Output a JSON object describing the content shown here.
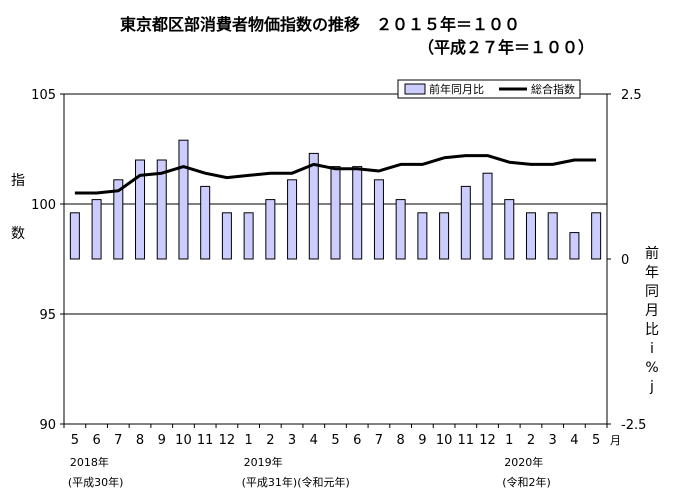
{
  "chart_data": {
    "type": "bar+line",
    "title": "東京都区部消費者物価指数の推移　２０１５年＝１００",
    "subtitle": "（平成２７年＝１００）",
    "categories": [
      "5",
      "6",
      "7",
      "8",
      "9",
      "10",
      "11",
      "12",
      "1",
      "2",
      "3",
      "4",
      "5",
      "6",
      "7",
      "8",
      "9",
      "10",
      "11",
      "12",
      "1",
      "2",
      "3",
      "4",
      "5"
    ],
    "month_unit": "月",
    "year_labels": [
      {
        "index": 0,
        "year": "2018年",
        "era": "(平成30年)"
      },
      {
        "index": 8,
        "year": "2019年",
        "era": "(平成31年)(令和元年)"
      },
      {
        "index": 20,
        "year": "2020年",
        "era": "(令和2年)"
      }
    ],
    "left_axis": {
      "label_chars": [
        "指",
        "数"
      ],
      "ylim": [
        90,
        105
      ],
      "ticks": [
        "90",
        "95",
        "100",
        "105"
      ]
    },
    "right_axis": {
      "label_chars": [
        "前",
        "年",
        "同",
        "月",
        "比",
        "i",
        "%",
        "j"
      ],
      "ylim": [
        -2.5,
        2.5
      ],
      "ticks": [
        "-2.5",
        "0",
        "2.5"
      ]
    },
    "legend": {
      "position": "top-right",
      "bar_label": "前年同月比",
      "line_label": "総合指数"
    },
    "series": [
      {
        "name": "前年同月比",
        "type": "bar",
        "axis": "right",
        "values": [
          0.7,
          0.9,
          1.2,
          1.5,
          1.5,
          1.8,
          1.1,
          0.7,
          0.7,
          0.9,
          1.2,
          1.6,
          1.4,
          1.4,
          1.2,
          0.9,
          0.7,
          0.7,
          1.1,
          1.3,
          0.9,
          0.7,
          0.7,
          0.4,
          0.7
        ]
      },
      {
        "name": "総合指数",
        "type": "line",
        "axis": "left",
        "values": [
          100.5,
          100.5,
          100.6,
          101.3,
          101.4,
          101.7,
          101.4,
          101.2,
          101.3,
          101.4,
          101.4,
          101.8,
          101.6,
          101.6,
          101.5,
          101.8,
          101.8,
          102.1,
          102.2,
          102.2,
          101.9,
          101.8,
          101.8,
          102.0,
          102.0
        ]
      }
    ],
    "colors": {
      "bar_fill": "#ccccff",
      "bar_stroke": "#000000",
      "line": "#000000"
    }
  }
}
